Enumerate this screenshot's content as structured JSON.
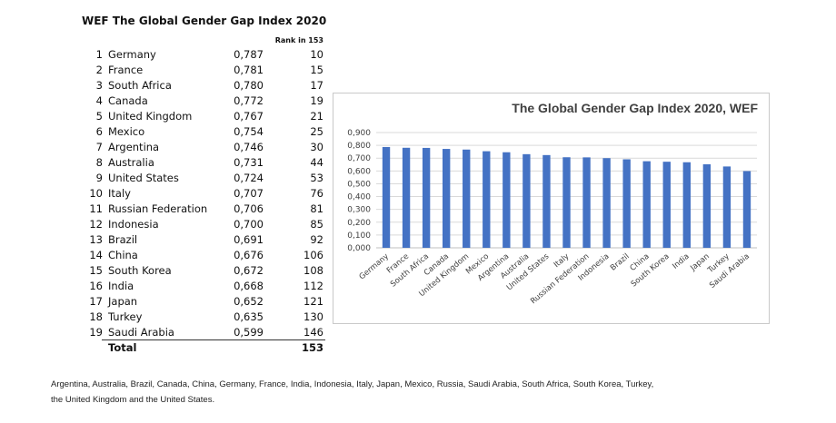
{
  "header": {
    "title": "WEF  The Global Gender Gap Index 2020",
    "rank_header": "Rank in 153"
  },
  "table": {
    "rows": [
      {
        "idx": "1",
        "country": "Germany",
        "score": "0,787",
        "rank": "10"
      },
      {
        "idx": "2",
        "country": "France",
        "score": "0,781",
        "rank": "15"
      },
      {
        "idx": "3",
        "country": "South Africa",
        "score": "0,780",
        "rank": "17"
      },
      {
        "idx": "4",
        "country": "Canada",
        "score": "0,772",
        "rank": "19"
      },
      {
        "idx": "5",
        "country": "United Kingdom",
        "score": "0,767",
        "rank": "21"
      },
      {
        "idx": "6",
        "country": "Mexico",
        "score": "0,754",
        "rank": "25"
      },
      {
        "idx": "7",
        "country": "Argentina",
        "score": "0,746",
        "rank": "30"
      },
      {
        "idx": "8",
        "country": "Australia",
        "score": "0,731",
        "rank": "44"
      },
      {
        "idx": "9",
        "country": "United States",
        "score": "0,724",
        "rank": "53"
      },
      {
        "idx": "10",
        "country": "Italy",
        "score": "0,707",
        "rank": "76"
      },
      {
        "idx": "11",
        "country": "Russian Federation",
        "score": "0,706",
        "rank": "81"
      },
      {
        "idx": "12",
        "country": "Indonesia",
        "score": "0,700",
        "rank": "85"
      },
      {
        "idx": "13",
        "country": "Brazil",
        "score": "0,691",
        "rank": "92"
      },
      {
        "idx": "14",
        "country": "China",
        "score": "0,676",
        "rank": "106"
      },
      {
        "idx": "15",
        "country": "South Korea",
        "score": "0,672",
        "rank": "108"
      },
      {
        "idx": "16",
        "country": "India",
        "score": "0,668",
        "rank": "112"
      },
      {
        "idx": "17",
        "country": "Japan",
        "score": "0,652",
        "rank": "121"
      },
      {
        "idx": "18",
        "country": "Turkey",
        "score": "0,635",
        "rank": "130"
      },
      {
        "idx": "19",
        "country": "Saudi Arabia",
        "score": "0,599",
        "rank": "146"
      }
    ],
    "total": {
      "label": "Total",
      "rank": "153"
    }
  },
  "chart_data": {
    "type": "bar",
    "title": "The Global Gender Gap Index 2020,  WEF",
    "categories": [
      "Germany",
      "France",
      "South Africa",
      "Canada",
      "United Kingdom",
      "Mexico",
      "Argentina",
      "Australia",
      "United States",
      "Italy",
      "Russian Federation",
      "Indonesia",
      "Brazil",
      "China",
      "South Korea",
      "India",
      "Japan",
      "Turkey",
      "Saudi Arabia"
    ],
    "values": [
      0.787,
      0.781,
      0.78,
      0.772,
      0.767,
      0.754,
      0.746,
      0.731,
      0.724,
      0.707,
      0.706,
      0.7,
      0.691,
      0.676,
      0.672,
      0.668,
      0.652,
      0.635,
      0.599
    ],
    "ylim": [
      0,
      0.9
    ],
    "yticks": [
      "0,000",
      "0,100",
      "0,200",
      "0,300",
      "0,400",
      "0,500",
      "0,600",
      "0,700",
      "0,800",
      "0,900"
    ],
    "grid": true,
    "bar_color": "#4472C4",
    "grid_color": "#d9d9d9",
    "xlabel": "",
    "ylabel": ""
  },
  "footnote": {
    "line1": "Argentina, Australia, Brazil, Canada, China, Germany, France, India, Indonesia, Italy, Japan, Mexico, Russia, Saudi Arabia, South Africa, South Korea, Turkey,",
    "line2": "the United Kingdom and the United States."
  }
}
